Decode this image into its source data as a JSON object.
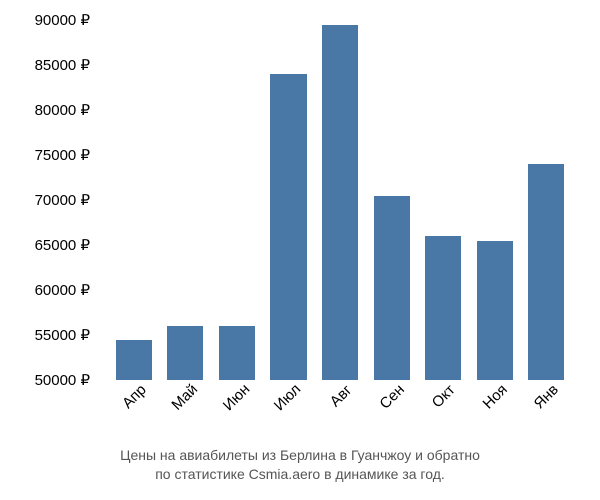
{
  "chart": {
    "type": "bar",
    "categories": [
      "Апр",
      "Май",
      "Июн",
      "Июл",
      "Авг",
      "Сен",
      "Окт",
      "Ноя",
      "Янв"
    ],
    "values": [
      54500,
      56000,
      56000,
      84000,
      89500,
      70500,
      66000,
      65500,
      74000
    ],
    "bar_color": "#4a78a6",
    "ylim": [
      50000,
      90000
    ],
    "ytick_step": 5000,
    "ytick_labels": [
      "50000 ₽",
      "55000 ₽",
      "60000 ₽",
      "65000 ₽",
      "70000 ₽",
      "75000 ₽",
      "80000 ₽",
      "85000 ₽",
      "90000 ₽"
    ],
    "ytick_values": [
      50000,
      55000,
      60000,
      65000,
      70000,
      75000,
      80000,
      85000,
      90000
    ],
    "background_color": "#ffffff",
    "label_fontsize": 15,
    "caption_fontsize": 14,
    "caption_color": "#555555",
    "bar_width": 0.7,
    "x_label_rotation": -45
  },
  "caption": {
    "line1": "Цены на авиабилеты из Берлина в Гуанчжоу и обратно",
    "line2": "по статистике Csmia.aero в динамике за год."
  }
}
